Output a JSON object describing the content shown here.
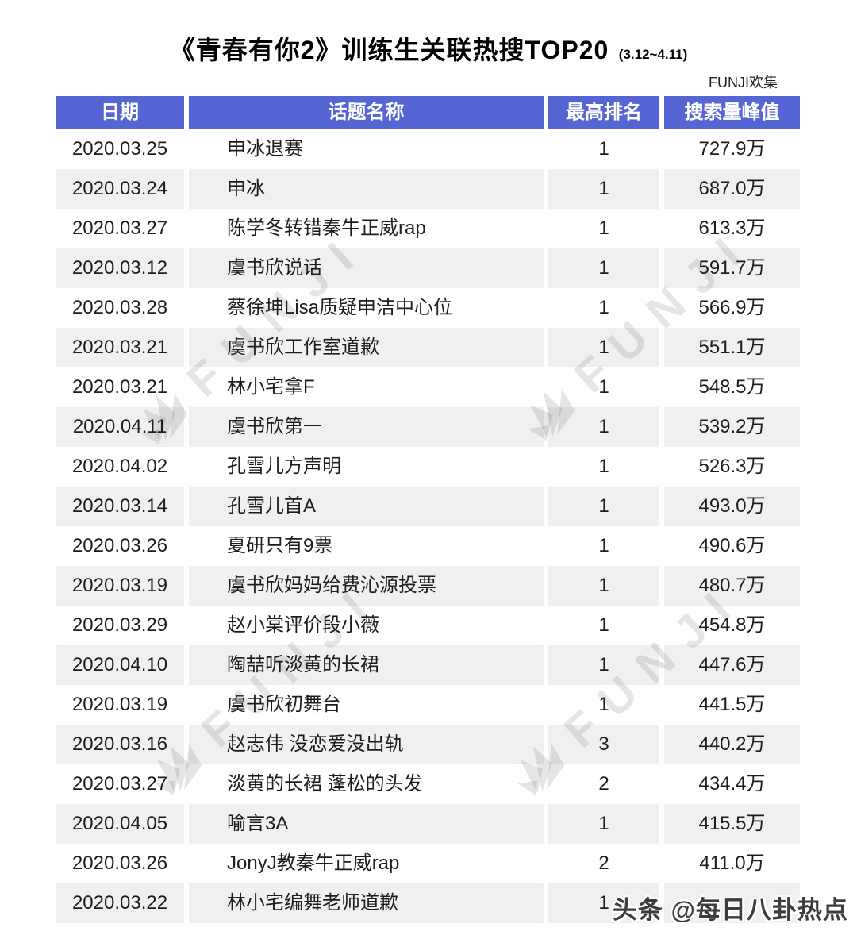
{
  "title": {
    "main": "《青春有你2》训练生关联热搜TOP20",
    "range": "(3.12~4.11)"
  },
  "credit": "FUNJI欢集",
  "watermark": {
    "brand": "FUNJI",
    "corner": "头条 @每日八卦热点"
  },
  "colors": {
    "header_bg": "#5566d4",
    "header_text": "#ffffff",
    "row_bg": "#ffffff",
    "row_alt_bg": "#f0f0f0",
    "body_text": "#1d1d1d",
    "watermark_gray": "#dddddd"
  },
  "chart_data": {
    "type": "table",
    "title": "《青春有你2》训练生关联热搜TOP20 (3.12~4.11)",
    "columns": [
      "日期",
      "话题名称",
      "最高排名",
      "搜索量峰值"
    ],
    "rows": [
      [
        "2020.03.25",
        "申冰退赛",
        "1",
        "727.9万"
      ],
      [
        "2020.03.24",
        "申冰",
        "1",
        "687.0万"
      ],
      [
        "2020.03.27",
        "陈学冬转错秦牛正威rap",
        "1",
        "613.3万"
      ],
      [
        "2020.03.12",
        "虞书欣说话",
        "1",
        "591.7万"
      ],
      [
        "2020.03.28",
        "蔡徐坤Lisa质疑申洁中心位",
        "1",
        "566.9万"
      ],
      [
        "2020.03.21",
        "虞书欣工作室道歉",
        "1",
        "551.1万"
      ],
      [
        "2020.03.21",
        "林小宅拿F",
        "1",
        "548.5万"
      ],
      [
        "2020.04.11",
        "虞书欣第一",
        "1",
        "539.2万"
      ],
      [
        "2020.04.02",
        "孔雪儿方声明",
        "1",
        "526.3万"
      ],
      [
        "2020.03.14",
        "孔雪儿首A",
        "1",
        "493.0万"
      ],
      [
        "2020.03.26",
        "夏研只有9票",
        "1",
        "490.6万"
      ],
      [
        "2020.03.19",
        "虞书欣妈妈给费沁源投票",
        "1",
        "480.7万"
      ],
      [
        "2020.03.29",
        "赵小棠评价段小薇",
        "1",
        "454.8万"
      ],
      [
        "2020.04.10",
        "陶喆听淡黄的长裙",
        "1",
        "447.6万"
      ],
      [
        "2020.03.19",
        "虞书欣初舞台",
        "1",
        "441.5万"
      ],
      [
        "2020.03.16",
        "赵志伟 没恋爱没出轨",
        "3",
        "440.2万"
      ],
      [
        "2020.03.27",
        "淡黄的长裙 蓬松的头发",
        "2",
        "434.4万"
      ],
      [
        "2020.04.05",
        "喻言3A",
        "1",
        "415.5万"
      ],
      [
        "2020.03.26",
        "JonyJ教秦牛正威rap",
        "2",
        "411.0万"
      ],
      [
        "2020.03.22",
        "林小宅编舞老师道歉",
        "1",
        ""
      ]
    ]
  }
}
